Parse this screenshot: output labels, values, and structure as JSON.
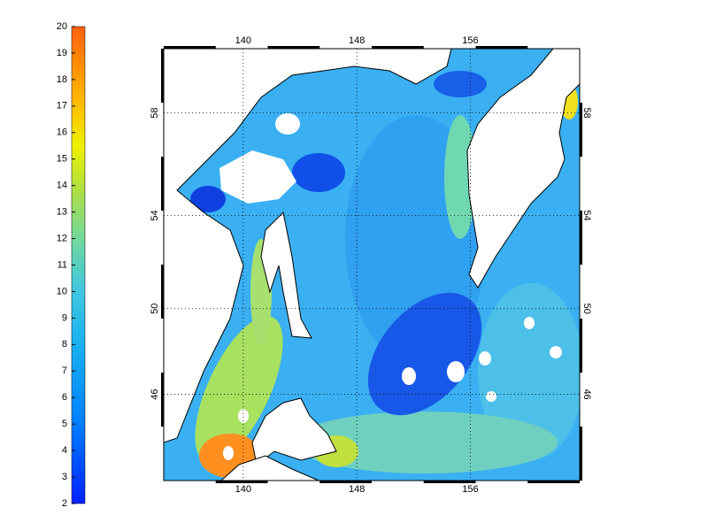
{
  "colorbar": {
    "lim": [
      2,
      20
    ],
    "ticks": [
      2,
      3,
      4,
      5,
      6,
      7,
      8,
      9,
      10,
      11,
      12,
      13,
      14,
      15,
      16,
      17,
      18,
      19,
      20
    ]
  },
  "map": {
    "xlim": [
      134.4,
      163.7
    ],
    "ylim": [
      41.66,
      60.3
    ],
    "xticks": [
      140,
      148,
      156
    ],
    "yticks": [
      46,
      50,
      54,
      58
    ]
  }
}
